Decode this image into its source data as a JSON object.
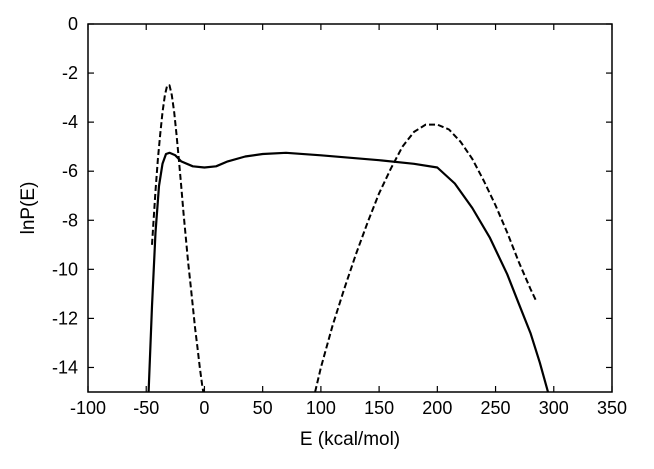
{
  "chart_data": {
    "type": "line",
    "title": "",
    "xlabel": "E (kcal/mol)",
    "ylabel": "lnP(E)",
    "xlim": [
      -100,
      350
    ],
    "ylim": [
      -15,
      0
    ],
    "x_ticks": [
      -100,
      -50,
      0,
      50,
      100,
      150,
      200,
      250,
      300,
      350
    ],
    "y_ticks": [
      0,
      -2,
      -4,
      -6,
      -8,
      -10,
      -12,
      -14
    ],
    "grid": false,
    "legend": "none",
    "series": [
      {
        "style": "solid",
        "color": "#000000",
        "x": [
          -48,
          -45,
          -42,
          -39,
          -36,
          -33,
          -30,
          -25,
          -20,
          -10,
          0,
          10,
          20,
          35,
          50,
          70,
          100,
          150,
          180,
          200,
          215,
          230,
          245,
          260,
          270,
          280,
          288,
          295
        ],
        "y": [
          -15,
          -11.5,
          -8.5,
          -6.6,
          -5.7,
          -5.3,
          -5.25,
          -5.35,
          -5.6,
          -5.8,
          -5.85,
          -5.8,
          -5.6,
          -5.4,
          -5.3,
          -5.25,
          -5.35,
          -5.55,
          -5.7,
          -5.85,
          -6.5,
          -7.5,
          -8.7,
          -10.2,
          -11.4,
          -12.6,
          -13.8,
          -15
        ]
      },
      {
        "style": "dashed",
        "color": "#000000",
        "x": [
          -45,
          -42,
          -40,
          -38,
          -36,
          -34,
          -32,
          -30,
          -28,
          -26,
          -24,
          -22,
          -20,
          -18,
          -16,
          -14,
          -12,
          -10,
          -8,
          -6,
          -4,
          -2,
          -1
        ],
        "y": [
          -9.0,
          -6.8,
          -5.5,
          -4.5,
          -3.6,
          -2.9,
          -2.5,
          -2.5,
          -2.9,
          -3.6,
          -4.5,
          -5.5,
          -6.6,
          -7.7,
          -8.7,
          -9.7,
          -10.6,
          -11.5,
          -12.4,
          -13.2,
          -14.0,
          -14.7,
          -15
        ]
      },
      {
        "style": "dashed",
        "color": "#000000",
        "x": [
          95,
          100,
          110,
          120,
          130,
          140,
          150,
          160,
          170,
          180,
          190,
          200,
          210,
          220,
          230,
          240,
          250,
          260,
          270,
          280,
          285
        ],
        "y": [
          -15,
          -14.0,
          -12.3,
          -10.8,
          -9.4,
          -8.1,
          -6.9,
          -5.9,
          -5.0,
          -4.4,
          -4.1,
          -4.1,
          -4.3,
          -4.8,
          -5.5,
          -6.4,
          -7.4,
          -8.5,
          -9.7,
          -10.8,
          -11.3
        ]
      }
    ]
  }
}
